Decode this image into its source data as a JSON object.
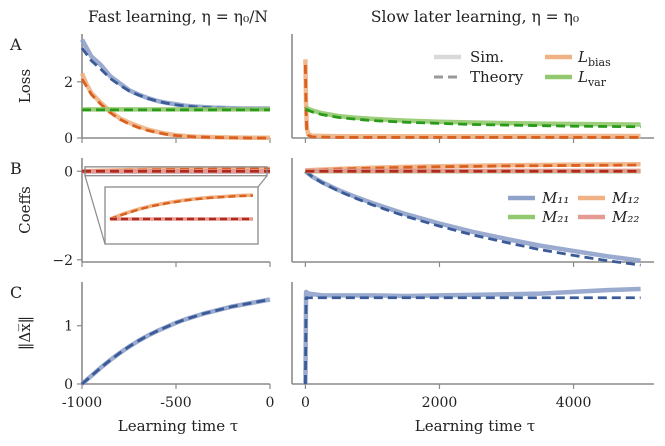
{
  "figure": {
    "col_titles": [
      "Fast learning, η = η₀/N",
      "Slow later learning, η = η₀"
    ],
    "x_label": "Learning time τ",
    "panel_letters": [
      "A",
      "B",
      "C"
    ]
  },
  "colors": {
    "blue": "#3a5a98",
    "blue_light": "#8fa2ca",
    "orange": "#d9601e",
    "orange_light": "#f0b184",
    "green": "#2a9a1a",
    "green_light": "#92c96e",
    "red": "#b02a1c",
    "red_light": "#e59a92",
    "gray": "#999999",
    "gray_light": "#d9d9d9"
  },
  "chart_data": [
    {
      "type": "line",
      "panel": "A",
      "column": "left",
      "ylabel": "Loss",
      "xlim": [
        -1000,
        0
      ],
      "ylim": [
        0,
        3.7
      ],
      "xticks": [
        -1000,
        -500,
        0
      ],
      "xtick_labels": [
        "−1000",
        "−500",
        "0"
      ],
      "yticks": [
        0,
        2
      ],
      "ytick_labels": [
        "0",
        "2"
      ],
      "series": [
        {
          "name": "Sim.",
          "role": "sim",
          "color": "blue_light",
          "x": [
            -1000,
            -975,
            -950,
            -925,
            -900,
            -850,
            -800,
            -750,
            -700,
            -650,
            -600,
            -550,
            -500,
            -450,
            -400,
            -350,
            -300,
            -250,
            -200,
            -150,
            -100,
            -50,
            0
          ],
          "y": [
            3.5,
            3.2,
            2.9,
            2.75,
            2.6,
            2.2,
            1.95,
            1.7,
            1.55,
            1.42,
            1.32,
            1.25,
            1.2,
            1.15,
            1.12,
            1.1,
            1.08,
            1.07,
            1.06,
            1.05,
            1.05,
            1.05,
            1.05
          ]
        },
        {
          "name": "Theory",
          "role": "theory",
          "color": "blue",
          "x": [
            -1000,
            -950,
            -900,
            -850,
            -800,
            -750,
            -700,
            -650,
            -600,
            -550,
            -500,
            -450,
            -400,
            -350,
            -300,
            -250,
            -200,
            -150,
            -100,
            -50,
            0
          ],
          "y": [
            3.2,
            2.75,
            2.45,
            2.12,
            1.88,
            1.68,
            1.53,
            1.41,
            1.31,
            1.24,
            1.18,
            1.14,
            1.11,
            1.09,
            1.07,
            1.06,
            1.05,
            1.04,
            1.04,
            1.03,
            1.03
          ]
        },
        {
          "name": "L_bias",
          "role": "sim",
          "color": "orange_light",
          "x": [
            -1000,
            -975,
            -950,
            -900,
            -850,
            -800,
            -750,
            -700,
            -650,
            -600,
            -550,
            -500,
            -450,
            -400,
            -350,
            -300,
            -200,
            -100,
            0
          ],
          "y": [
            2.3,
            1.9,
            1.6,
            1.25,
            0.95,
            0.7,
            0.55,
            0.42,
            0.3,
            0.22,
            0.15,
            0.1,
            0.07,
            0.05,
            0.04,
            0.03,
            0.02,
            0.01,
            0.01
          ]
        },
        {
          "name": "L_bias",
          "role": "theory",
          "color": "orange",
          "x": [
            -1000,
            -950,
            -900,
            -850,
            -800,
            -750,
            -700,
            -650,
            -600,
            -550,
            -500,
            -450,
            -400,
            -300,
            -200,
            -100,
            0
          ],
          "y": [
            2.1,
            1.55,
            1.2,
            0.9,
            0.67,
            0.5,
            0.37,
            0.27,
            0.19,
            0.13,
            0.09,
            0.06,
            0.04,
            0.02,
            0.01,
            0.0,
            0.0
          ]
        },
        {
          "name": "L_var",
          "role": "sim",
          "color": "green_light",
          "x": [
            -1000,
            -500,
            0
          ],
          "y": [
            1.02,
            1.02,
            1.02
          ]
        },
        {
          "name": "L_var",
          "role": "theory",
          "color": "green",
          "x": [
            -1000,
            -500,
            0
          ],
          "y": [
            1.0,
            1.0,
            1.0
          ]
        }
      ]
    },
    {
      "type": "line",
      "panel": "A",
      "column": "right",
      "ylabel": "Loss",
      "xlim": [
        -200,
        5200
      ],
      "ylim": [
        0,
        3.7
      ],
      "xticks": [
        0,
        2000,
        4000
      ],
      "legend": {
        "placement": "top-right",
        "entries": [
          "Sim.",
          "Theory",
          "L_bias",
          "L_var"
        ]
      },
      "series": [
        {
          "name": "Sim.",
          "role": "sim",
          "color": "gray_light",
          "x": [],
          "y": []
        },
        {
          "name": "Theory",
          "role": "theory",
          "color": "gray",
          "x": [],
          "y": []
        },
        {
          "name": "L_bias",
          "role": "sim",
          "color": "orange_light",
          "x": [
            0,
            5,
            10,
            20,
            40,
            100,
            500,
            1000,
            2000,
            3000,
            4000,
            5000
          ],
          "y": [
            2.8,
            2.0,
            1.2,
            0.4,
            0.15,
            0.08,
            0.06,
            0.06,
            0.06,
            0.06,
            0.07,
            0.07
          ]
        },
        {
          "name": "L_bias",
          "role": "theory",
          "color": "orange",
          "x": [
            0,
            5,
            10,
            20,
            40,
            100,
            500,
            1000,
            2000,
            3000,
            4000,
            5000
          ],
          "y": [
            2.6,
            1.8,
            1.0,
            0.3,
            0.1,
            0.04,
            0.02,
            0.02,
            0.02,
            0.02,
            0.02,
            0.02
          ]
        },
        {
          "name": "L_var",
          "role": "sim",
          "color": "green_light",
          "x": [
            0,
            100,
            250,
            500,
            750,
            1000,
            1500,
            2000,
            2500,
            3000,
            3500,
            4000,
            4500,
            5000
          ],
          "y": [
            1.08,
            0.98,
            0.88,
            0.78,
            0.72,
            0.68,
            0.62,
            0.58,
            0.55,
            0.53,
            0.51,
            0.5,
            0.49,
            0.48
          ]
        },
        {
          "name": "L_var",
          "role": "theory",
          "color": "green",
          "x": [
            0,
            100,
            250,
            500,
            750,
            1000,
            1500,
            2000,
            2500,
            3000,
            3500,
            4000,
            4500,
            5000
          ],
          "y": [
            1.02,
            0.93,
            0.83,
            0.73,
            0.67,
            0.62,
            0.56,
            0.52,
            0.48,
            0.46,
            0.44,
            0.42,
            0.41,
            0.4
          ]
        }
      ]
    },
    {
      "type": "line",
      "panel": "B",
      "column": "left",
      "ylabel": "Coeffs",
      "xlim": [
        -1000,
        0
      ],
      "ylim": [
        -2.05,
        0.3
      ],
      "xticks": [
        -1000,
        -500,
        0
      ],
      "yticks": [
        -2,
        0
      ],
      "ytick_labels": [
        "−2",
        "0"
      ],
      "inset": {
        "zoom_of": "M12 and M22 near 0",
        "y_top": 0.1,
        "y_bottom": -0.1
      },
      "series": [
        {
          "name": "M₁₁",
          "role": "sim",
          "color": "blue_light",
          "x": [
            -1000,
            0
          ],
          "y": [
            -0.005,
            -0.005
          ]
        },
        {
          "name": "M₁₂",
          "role": "sim",
          "color": "orange_light",
          "x": [
            -1000,
            -900,
            -800,
            -700,
            -600,
            -500,
            -400,
            -300,
            -200,
            -100,
            0
          ],
          "y": [
            0,
            0.012,
            0.022,
            0.03,
            0.036,
            0.041,
            0.045,
            0.048,
            0.05,
            0.052,
            0.053
          ]
        },
        {
          "name": "M₁₂",
          "role": "theory",
          "color": "orange",
          "x": [
            -1000,
            -900,
            -800,
            -700,
            -600,
            -500,
            -400,
            -300,
            -200,
            -100,
            0
          ],
          "y": [
            0,
            0.011,
            0.021,
            0.029,
            0.035,
            0.04,
            0.044,
            0.047,
            0.049,
            0.051,
            0.052
          ]
        },
        {
          "name": "M₂₂",
          "role": "sim",
          "color": "red_light",
          "x": [
            -1000,
            0
          ],
          "y": [
            0,
            0
          ]
        },
        {
          "name": "M₂₂",
          "role": "theory",
          "color": "red",
          "x": [
            -1000,
            0
          ],
          "y": [
            0,
            0
          ]
        }
      ]
    },
    {
      "type": "line",
      "panel": "B",
      "column": "right",
      "ylabel": "Coeffs",
      "xlim": [
        -200,
        5200
      ],
      "ylim": [
        -2.05,
        0.3
      ],
      "xticks": [
        0,
        2000,
        4000
      ],
      "legend": {
        "placement": "right",
        "entries": [
          "M₁₁",
          "M₁₂",
          "M₂₁",
          "M₂₂"
        ]
      },
      "series": [
        {
          "name": "M₁₁",
          "role": "sim",
          "color": "blue_light",
          "x": [
            0,
            100,
            250,
            500,
            750,
            1000,
            1500,
            2000,
            2500,
            3000,
            3500,
            4000,
            4500,
            5000
          ],
          "y": [
            0,
            -0.12,
            -0.25,
            -0.43,
            -0.58,
            -0.72,
            -0.97,
            -1.18,
            -1.37,
            -1.53,
            -1.68,
            -1.8,
            -1.92,
            -2.02
          ]
        },
        {
          "name": "M₁₁",
          "role": "theory",
          "color": "blue",
          "x": [
            0,
            100,
            250,
            500,
            750,
            1000,
            1500,
            2000,
            2500,
            3000,
            3500,
            4000,
            4500,
            5000
          ],
          "y": [
            0,
            -0.12,
            -0.26,
            -0.45,
            -0.61,
            -0.76,
            -1.02,
            -1.24,
            -1.44,
            -1.61,
            -1.77,
            -1.9,
            -2.02,
            -2.12
          ]
        },
        {
          "name": "M₁₂",
          "role": "sim",
          "color": "orange_light",
          "x": [
            0,
            250,
            500,
            1000,
            1500,
            2000,
            3000,
            4000,
            5000
          ],
          "y": [
            0.02,
            0.04,
            0.055,
            0.08,
            0.1,
            0.115,
            0.135,
            0.15,
            0.16
          ]
        },
        {
          "name": "M₁₂",
          "role": "theory",
          "color": "orange",
          "x": [
            0,
            250,
            500,
            1000,
            1500,
            2000,
            3000,
            4000,
            5000
          ],
          "y": [
            0.02,
            0.035,
            0.05,
            0.072,
            0.09,
            0.103,
            0.12,
            0.132,
            0.14
          ]
        },
        {
          "name": "M₂₁",
          "role": "sim",
          "color": "green_light",
          "x": [
            0,
            5000
          ],
          "y": [
            0,
            0
          ]
        },
        {
          "name": "M₂₂",
          "role": "sim",
          "color": "red_light",
          "x": [
            0,
            5000
          ],
          "y": [
            0.01,
            0.01
          ]
        },
        {
          "name": "M₂₂",
          "role": "theory",
          "color": "red",
          "x": [
            0,
            5000
          ],
          "y": [
            0,
            0
          ]
        }
      ]
    },
    {
      "type": "line",
      "panel": "C",
      "column": "left",
      "ylabel": "‖Δx̅‖",
      "xlim": [
        -1000,
        0
      ],
      "ylim": [
        0,
        1.75
      ],
      "xticks": [
        -1000,
        -500,
        0
      ],
      "yticks": [
        0,
        1
      ],
      "series": [
        {
          "name": "Sim.",
          "role": "sim",
          "color": "blue_light",
          "x": [
            -1000,
            -950,
            -900,
            -850,
            -800,
            -750,
            -700,
            -650,
            -600,
            -550,
            -500,
            -450,
            -400,
            -350,
            -300,
            -250,
            -200,
            -150,
            -100,
            -50,
            0
          ],
          "y": [
            0,
            0.14,
            0.28,
            0.41,
            0.53,
            0.64,
            0.74,
            0.83,
            0.91,
            0.98,
            1.05,
            1.11,
            1.16,
            1.21,
            1.25,
            1.29,
            1.33,
            1.36,
            1.39,
            1.42,
            1.45
          ]
        },
        {
          "name": "Theory",
          "role": "theory",
          "color": "blue",
          "x": [
            -1000,
            -950,
            -900,
            -850,
            -800,
            -750,
            -700,
            -650,
            -600,
            -550,
            -500,
            -450,
            -400,
            -350,
            -300,
            -250,
            -200,
            -150,
            -100,
            -50,
            0
          ],
          "y": [
            0,
            0.14,
            0.28,
            0.41,
            0.53,
            0.64,
            0.74,
            0.83,
            0.91,
            0.98,
            1.05,
            1.11,
            1.16,
            1.21,
            1.25,
            1.29,
            1.33,
            1.36,
            1.39,
            1.42,
            1.45
          ]
        }
      ]
    },
    {
      "type": "line",
      "panel": "C",
      "column": "right",
      "ylabel": "‖Δx̅‖",
      "xlim": [
        -200,
        5200
      ],
      "ylim": [
        0,
        1.75
      ],
      "xticks": [
        0,
        2000,
        4000
      ],
      "xtick_labels": [
        "0",
        "2000",
        "4000"
      ],
      "series": [
        {
          "name": "Sim.",
          "role": "sim",
          "color": "blue_light",
          "x": [
            0,
            10,
            50,
            250,
            500,
            1000,
            1500,
            2000,
            2500,
            3000,
            3500,
            4000,
            4500,
            5000
          ],
          "y": [
            0,
            1.58,
            1.55,
            1.52,
            1.52,
            1.52,
            1.51,
            1.52,
            1.53,
            1.54,
            1.55,
            1.58,
            1.61,
            1.63
          ]
        },
        {
          "name": "Theory",
          "role": "theory",
          "color": "blue",
          "x": [
            0,
            10,
            50,
            250,
            500,
            1000,
            2000,
            3000,
            4000,
            5000
          ],
          "y": [
            0,
            1.48,
            1.48,
            1.48,
            1.48,
            1.48,
            1.48,
            1.48,
            1.48,
            1.48
          ]
        }
      ]
    }
  ]
}
